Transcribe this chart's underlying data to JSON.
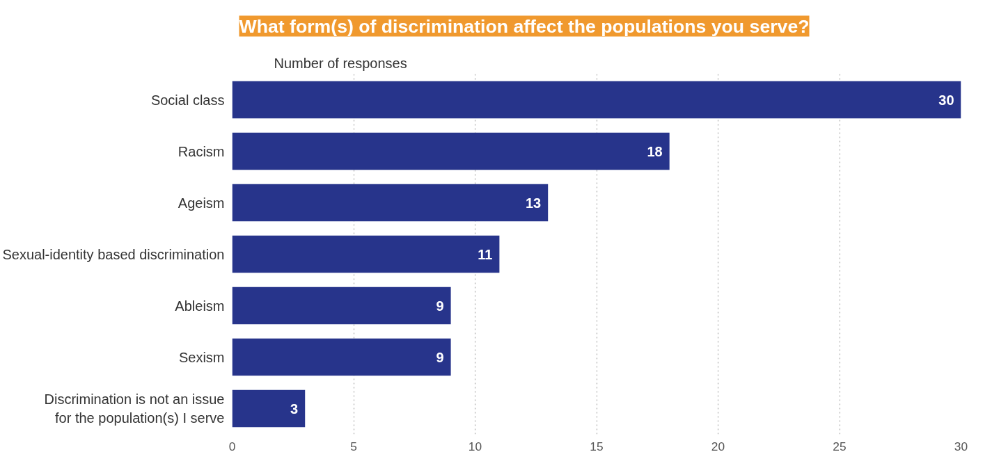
{
  "chart_data": {
    "type": "bar",
    "orientation": "horizontal",
    "title": "What form(s) of discrimination affect the populations you serve?",
    "xlabel": "Number of responses",
    "categories": [
      "Social class",
      "Racism",
      "Ageism",
      "Sexual-identity based discrimination",
      "Ableism",
      "Sexism",
      "Discrimination is not an issue\nfor the population(s) I serve"
    ],
    "values": [
      30,
      18,
      13,
      11,
      9,
      9,
      3
    ],
    "color": "#27348b",
    "xlim": [
      0,
      30
    ],
    "xticks": [
      0,
      5,
      10,
      15,
      20,
      25,
      30
    ],
    "grid": "x",
    "data_labels": true
  }
}
